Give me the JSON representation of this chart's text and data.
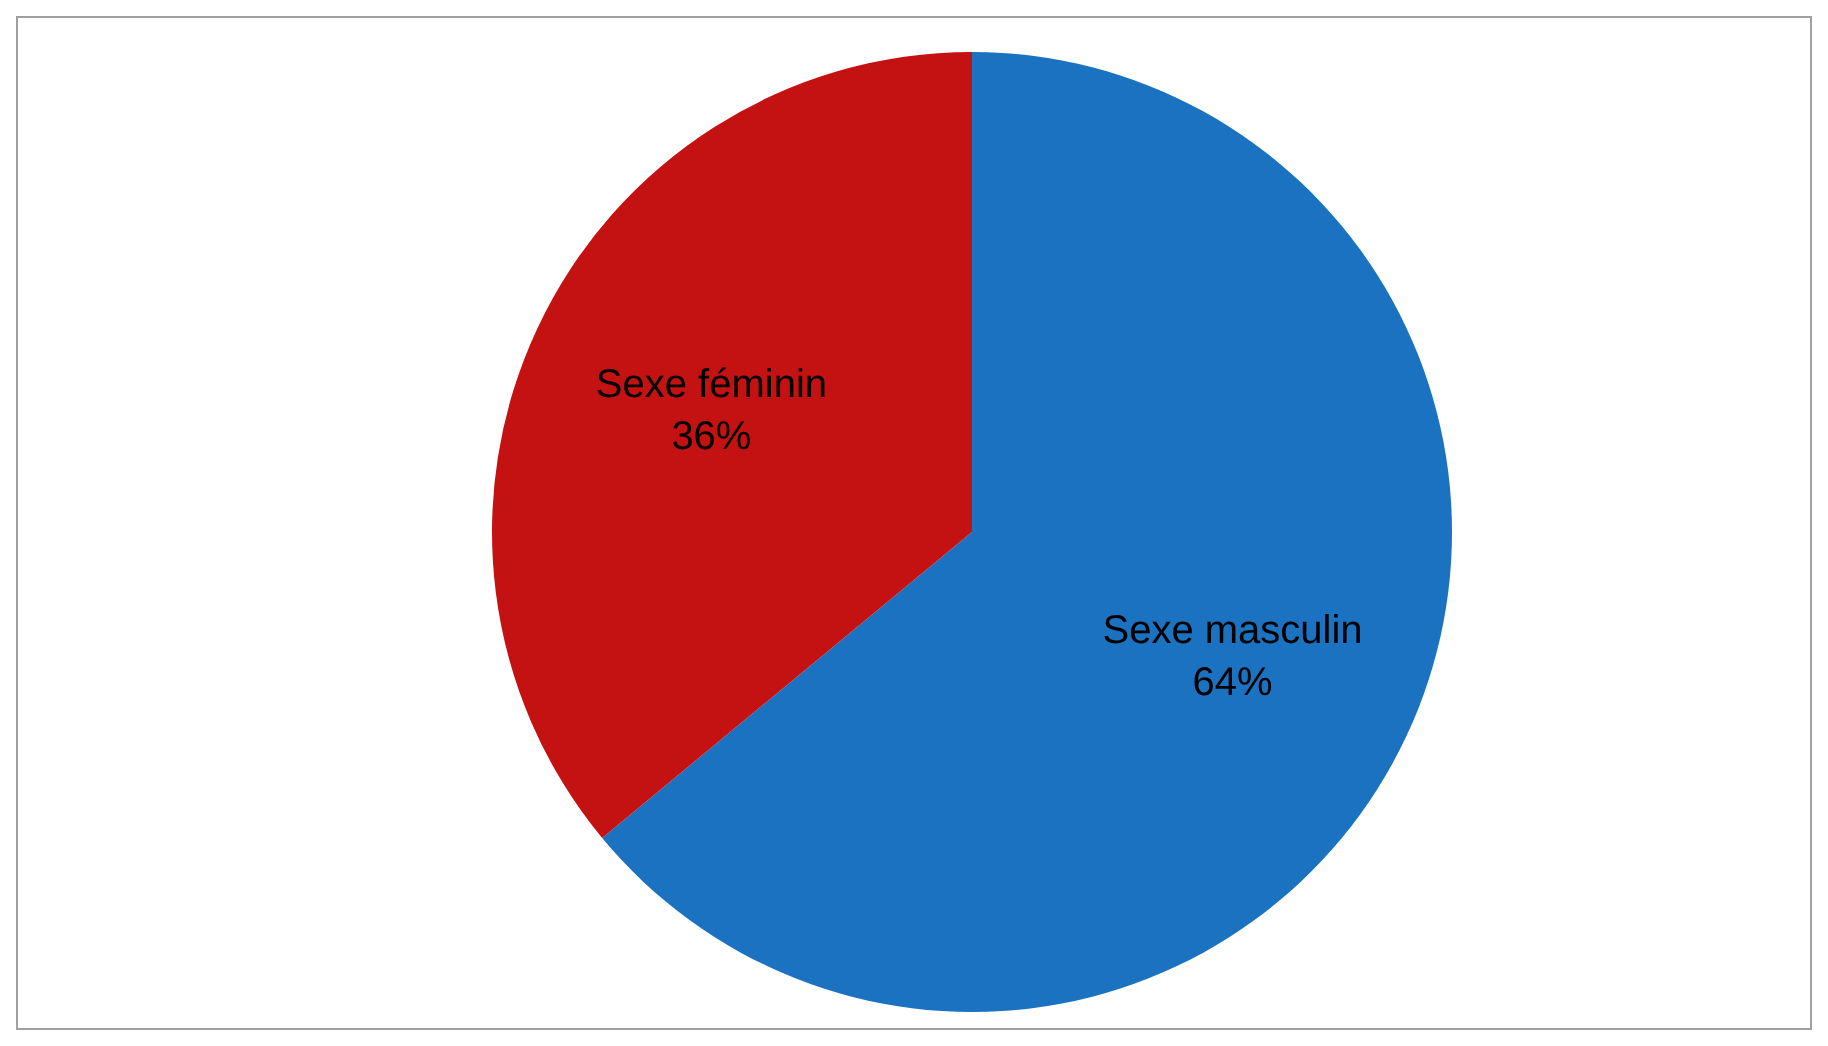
{
  "chart_data": {
    "type": "pie",
    "categories": [
      "Sexe masculin",
      "Sexe féminin"
    ],
    "values": [
      64,
      36
    ],
    "value_labels": [
      "64%",
      "36%"
    ],
    "colors": [
      "#1a72c0",
      "#c41212"
    ],
    "legend": false
  }
}
